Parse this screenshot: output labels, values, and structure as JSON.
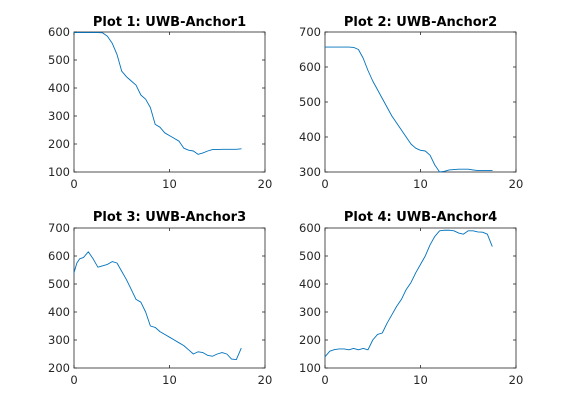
{
  "figure": {
    "background": "#ffffff",
    "axis_color": "#262626",
    "line_color": "#0072bd"
  },
  "chart_data": [
    {
      "type": "line",
      "title": "Plot 1: UWB-Anchor1",
      "xlabel": "",
      "ylabel": "",
      "xlim": [
        0,
        20
      ],
      "ylim": [
        100,
        600
      ],
      "xticks": [
        0,
        10,
        20
      ],
      "yticks": [
        100,
        200,
        300,
        400,
        500,
        600
      ],
      "grid": false,
      "series": [
        {
          "x": [
            0,
            0.5,
            1,
            1.5,
            2,
            2.5,
            3,
            3.5,
            4,
            4.5,
            5,
            5.5,
            6,
            6.5,
            7,
            7.5,
            8,
            8.5,
            9,
            9.5,
            10,
            10.5,
            11,
            11.5,
            12,
            12.5,
            13,
            13.5,
            14,
            14.5,
            15,
            15.5,
            16,
            16.5,
            17,
            17.5
          ],
          "y": [
            598,
            598,
            598,
            598,
            598,
            598,
            597,
            585,
            560,
            520,
            460,
            440,
            425,
            410,
            375,
            360,
            330,
            270,
            260,
            240,
            230,
            220,
            210,
            185,
            178,
            175,
            163,
            168,
            175,
            180,
            180,
            181,
            181,
            181,
            181,
            183
          ]
        }
      ]
    },
    {
      "type": "line",
      "title": "Plot 2: UWB-Anchor2",
      "xlabel": "",
      "ylabel": "",
      "xlim": [
        0,
        20
      ],
      "ylim": [
        300,
        700
      ],
      "xticks": [
        0,
        10,
        20
      ],
      "yticks": [
        300,
        400,
        500,
        600,
        700
      ],
      "grid": false,
      "series": [
        {
          "x": [
            0,
            0.5,
            1,
            1.5,
            2,
            2.5,
            3,
            3.5,
            4,
            4.5,
            5,
            5.5,
            6,
            6.5,
            7,
            7.5,
            8,
            8.5,
            9,
            9.5,
            10,
            10.5,
            11,
            11.5,
            12,
            12.5,
            13,
            13.5,
            14,
            14.5,
            15,
            15.5,
            16,
            16.5,
            17,
            17.5
          ],
          "y": [
            657,
            657,
            657,
            657,
            657,
            657,
            656,
            650,
            625,
            590,
            560,
            535,
            510,
            485,
            460,
            440,
            420,
            400,
            380,
            368,
            362,
            360,
            348,
            320,
            300,
            302,
            306,
            307,
            308,
            308,
            308,
            306,
            304,
            304,
            304,
            304
          ]
        }
      ]
    },
    {
      "type": "line",
      "title": "Plot 3: UWB-Anchor3",
      "xlabel": "",
      "ylabel": "",
      "xlim": [
        0,
        20
      ],
      "ylim": [
        200,
        700
      ],
      "xticks": [
        0,
        10,
        20
      ],
      "yticks": [
        200,
        300,
        400,
        500,
        600,
        700
      ],
      "grid": false,
      "series": [
        {
          "x": [
            0,
            0.3,
            0.6,
            1,
            1.5,
            2,
            2.5,
            3,
            3.5,
            4,
            4.5,
            5,
            5.5,
            6,
            6.5,
            7,
            7.5,
            8,
            8.5,
            9,
            9.5,
            10,
            10.5,
            11,
            11.5,
            12,
            12.5,
            13,
            13.5,
            14,
            14.5,
            15,
            15.5,
            16,
            16.5,
            17,
            17.5
          ],
          "y": [
            540,
            575,
            590,
            595,
            615,
            590,
            560,
            565,
            570,
            580,
            575,
            545,
            515,
            480,
            445,
            435,
            400,
            350,
            345,
            330,
            320,
            310,
            300,
            290,
            280,
            265,
            250,
            258,
            255,
            245,
            242,
            250,
            255,
            250,
            232,
            230,
            270
          ]
        }
      ]
    },
    {
      "type": "line",
      "title": "Plot 4: UWB-Anchor4",
      "xlabel": "",
      "ylabel": "",
      "xlim": [
        0,
        20
      ],
      "ylim": [
        100,
        600
      ],
      "xticks": [
        0,
        10,
        20
      ],
      "yticks": [
        100,
        200,
        300,
        400,
        500,
        600
      ],
      "grid": false,
      "series": [
        {
          "x": [
            0,
            0.5,
            1,
            1.5,
            2,
            2.5,
            3,
            3.5,
            4,
            4.5,
            5,
            5.5,
            6,
            6.5,
            7,
            7.5,
            8,
            8.5,
            9,
            9.5,
            10,
            10.5,
            11,
            11.5,
            12,
            12.5,
            13,
            13.5,
            14,
            14.5,
            15,
            15.5,
            16,
            16.5,
            17,
            17.5
          ],
          "y": [
            140,
            160,
            166,
            168,
            168,
            165,
            170,
            165,
            170,
            165,
            200,
            220,
            225,
            260,
            290,
            320,
            345,
            380,
            405,
            440,
            470,
            500,
            540,
            570,
            590,
            592,
            592,
            590,
            582,
            578,
            590,
            590,
            586,
            585,
            578,
            535
          ]
        }
      ]
    }
  ]
}
